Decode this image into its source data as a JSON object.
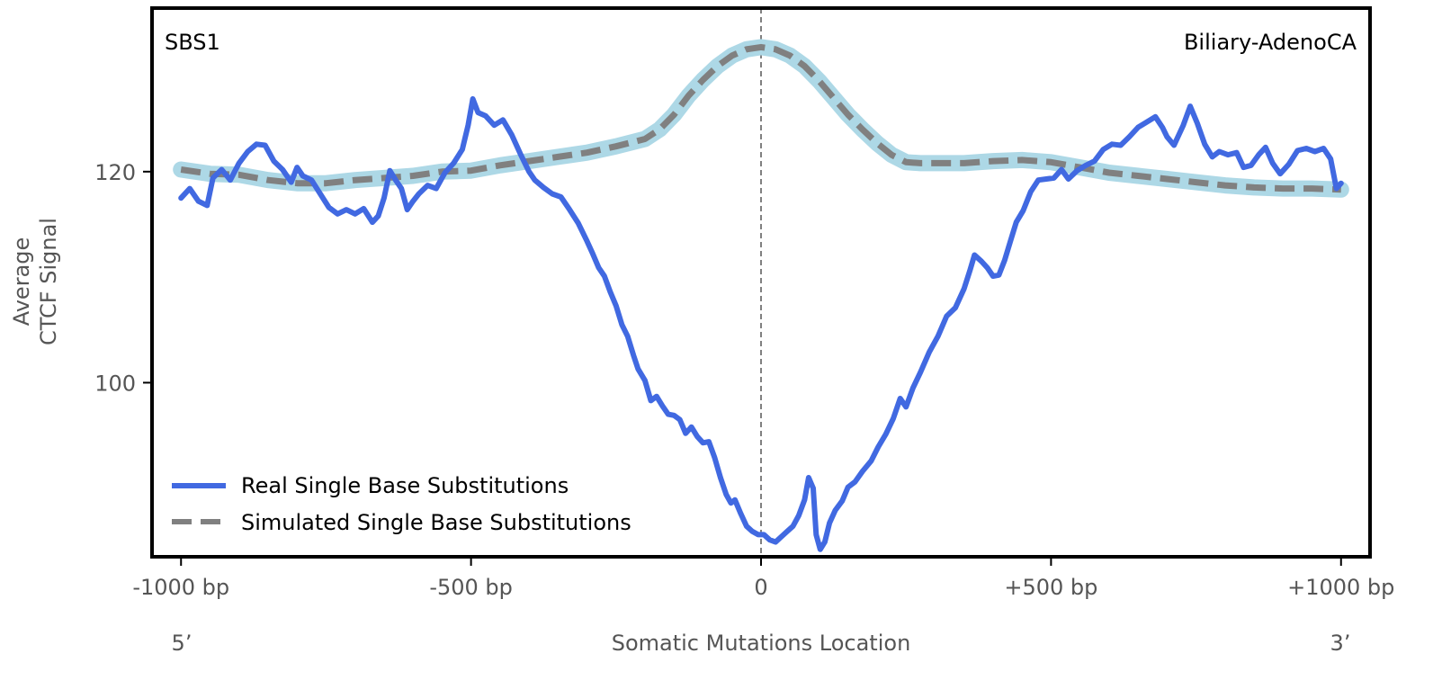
{
  "chart_data": {
    "type": "line",
    "panel_label": "SBS1",
    "cancer_type": "Biliary-AdenoCA",
    "xlabel": "Somatic Mutations Location",
    "ylabel_line1": "Average",
    "ylabel_line2": "CTCF Signal",
    "xlim": [
      -1050,
      1050
    ],
    "ylim": [
      83.5,
      135.5
    ],
    "x_ticks": [
      {
        "value": -1000,
        "label": "-1000 bp"
      },
      {
        "value": -500,
        "label": "-500 bp"
      },
      {
        "value": 0,
        "label": "0"
      },
      {
        "value": 500,
        "label": "+500 bp"
      },
      {
        "value": 1000,
        "label": "+1000 bp"
      }
    ],
    "y_ticks": [
      {
        "value": 100,
        "label": "100"
      },
      {
        "value": 120,
        "label": "120"
      }
    ],
    "strand_left": "5’",
    "strand_right": "3’",
    "center_line_x": 0,
    "legend": {
      "placement": "lower-left"
    },
    "colors": {
      "real": "#4169e1",
      "simulated": "#808080",
      "simulated_band": "#add8e6",
      "center_line": "#808080",
      "axis": "#000000",
      "tick_label": "#555555"
    },
    "series": [
      {
        "name": "Real Single Base Substitutions",
        "style": "solid",
        "points": [
          [
            -1000,
            117.5
          ],
          [
            -985,
            118.4
          ],
          [
            -970,
            117.2
          ],
          [
            -955,
            116.8
          ],
          [
            -945,
            119.4
          ],
          [
            -930,
            120.2
          ],
          [
            -915,
            119.2
          ],
          [
            -900,
            120.8
          ],
          [
            -885,
            121.9
          ],
          [
            -870,
            122.6
          ],
          [
            -855,
            122.5
          ],
          [
            -840,
            121.0
          ],
          [
            -825,
            120.2
          ],
          [
            -810,
            119.0
          ],
          [
            -800,
            120.4
          ],
          [
            -790,
            119.6
          ],
          [
            -775,
            119.2
          ],
          [
            -760,
            117.9
          ],
          [
            -745,
            116.6
          ],
          [
            -730,
            116.0
          ],
          [
            -715,
            116.4
          ],
          [
            -700,
            116.0
          ],
          [
            -685,
            116.5
          ],
          [
            -670,
            115.2
          ],
          [
            -660,
            115.8
          ],
          [
            -650,
            117.5
          ],
          [
            -640,
            120.1
          ],
          [
            -630,
            119.2
          ],
          [
            -620,
            118.4
          ],
          [
            -610,
            116.4
          ],
          [
            -600,
            117.2
          ],
          [
            -590,
            117.9
          ],
          [
            -575,
            118.7
          ],
          [
            -560,
            118.4
          ],
          [
            -545,
            119.9
          ],
          [
            -530,
            120.8
          ],
          [
            -515,
            122.1
          ],
          [
            -505,
            124.4
          ],
          [
            -497,
            126.9
          ],
          [
            -488,
            125.6
          ],
          [
            -475,
            125.3
          ],
          [
            -460,
            124.4
          ],
          [
            -445,
            124.9
          ],
          [
            -430,
            123.5
          ],
          [
            -415,
            121.7
          ],
          [
            -400,
            120.0
          ],
          [
            -390,
            119.2
          ],
          [
            -375,
            118.5
          ],
          [
            -360,
            117.9
          ],
          [
            -345,
            117.6
          ],
          [
            -330,
            116.4
          ],
          [
            -315,
            115.1
          ],
          [
            -300,
            113.4
          ],
          [
            -290,
            112.2
          ],
          [
            -280,
            110.9
          ],
          [
            -270,
            110.1
          ],
          [
            -260,
            108.6
          ],
          [
            -250,
            107.3
          ],
          [
            -240,
            105.5
          ],
          [
            -230,
            104.4
          ],
          [
            -220,
            102.6
          ],
          [
            -212,
            101.3
          ],
          [
            -200,
            100.2
          ],
          [
            -190,
            98.3
          ],
          [
            -180,
            98.7
          ],
          [
            -170,
            97.8
          ],
          [
            -160,
            97.0
          ],
          [
            -150,
            96.9
          ],
          [
            -140,
            96.5
          ],
          [
            -130,
            95.2
          ],
          [
            -120,
            95.8
          ],
          [
            -110,
            94.9
          ],
          [
            -100,
            94.3
          ],
          [
            -90,
            94.4
          ],
          [
            -80,
            92.9
          ],
          [
            -70,
            91.0
          ],
          [
            -60,
            89.4
          ],
          [
            -52,
            88.6
          ],
          [
            -45,
            88.9
          ],
          [
            -35,
            87.6
          ],
          [
            -25,
            86.4
          ],
          [
            -15,
            85.9
          ],
          [
            -5,
            85.6
          ],
          [
            5,
            85.6
          ],
          [
            15,
            85.1
          ],
          [
            25,
            84.9
          ],
          [
            35,
            85.4
          ],
          [
            45,
            85.9
          ],
          [
            55,
            86.4
          ],
          [
            65,
            87.4
          ],
          [
            75,
            88.9
          ],
          [
            82,
            91.0
          ],
          [
            90,
            90.0
          ],
          [
            95,
            85.6
          ],
          [
            102,
            84.2
          ],
          [
            110,
            84.9
          ],
          [
            118,
            86.7
          ],
          [
            128,
            87.9
          ],
          [
            140,
            88.8
          ],
          [
            150,
            90.1
          ],
          [
            162,
            90.6
          ],
          [
            175,
            91.6
          ],
          [
            190,
            92.6
          ],
          [
            202,
            93.9
          ],
          [
            215,
            95.1
          ],
          [
            228,
            96.6
          ],
          [
            240,
            98.5
          ],
          [
            250,
            97.7
          ],
          [
            262,
            99.5
          ],
          [
            275,
            101.0
          ],
          [
            290,
            102.9
          ],
          [
            305,
            104.4
          ],
          [
            320,
            106.3
          ],
          [
            335,
            107.1
          ],
          [
            350,
            108.9
          ],
          [
            360,
            110.6
          ],
          [
            368,
            112.1
          ],
          [
            380,
            111.5
          ],
          [
            390,
            110.9
          ],
          [
            400,
            110.1
          ],
          [
            410,
            110.2
          ],
          [
            420,
            111.6
          ],
          [
            430,
            113.4
          ],
          [
            440,
            115.2
          ],
          [
            452,
            116.3
          ],
          [
            465,
            118.1
          ],
          [
            478,
            119.2
          ],
          [
            492,
            119.3
          ],
          [
            505,
            119.4
          ],
          [
            518,
            120.2
          ],
          [
            530,
            119.3
          ],
          [
            545,
            120.1
          ],
          [
            560,
            120.6
          ],
          [
            575,
            121.0
          ],
          [
            590,
            122.1
          ],
          [
            605,
            122.6
          ],
          [
            620,
            122.5
          ],
          [
            635,
            123.3
          ],
          [
            650,
            124.2
          ],
          [
            665,
            124.7
          ],
          [
            680,
            125.2
          ],
          [
            692,
            124.2
          ],
          [
            700,
            123.3
          ],
          [
            712,
            122.5
          ],
          [
            728,
            124.4
          ],
          [
            740,
            126.2
          ],
          [
            752,
            124.6
          ],
          [
            765,
            122.6
          ],
          [
            778,
            121.4
          ],
          [
            790,
            121.9
          ],
          [
            805,
            121.6
          ],
          [
            820,
            121.8
          ],
          [
            832,
            120.4
          ],
          [
            845,
            120.6
          ],
          [
            858,
            121.6
          ],
          [
            870,
            122.3
          ],
          [
            882,
            120.8
          ],
          [
            895,
            119.8
          ],
          [
            910,
            120.7
          ],
          [
            925,
            122.0
          ],
          [
            940,
            122.2
          ],
          [
            955,
            121.9
          ],
          [
            970,
            122.2
          ],
          [
            982,
            121.2
          ],
          [
            992,
            118.4
          ],
          [
            1000,
            118.9
          ]
        ]
      },
      {
        "name": "Simulated Single Base Substitutions",
        "style": "dashed",
        "points": [
          [
            -1000,
            120.2
          ],
          [
            -950,
            119.8
          ],
          [
            -900,
            119.7
          ],
          [
            -850,
            119.2
          ],
          [
            -800,
            118.9
          ],
          [
            -750,
            118.9
          ],
          [
            -700,
            119.2
          ],
          [
            -650,
            119.4
          ],
          [
            -600,
            119.6
          ],
          [
            -550,
            120.0
          ],
          [
            -500,
            120.1
          ],
          [
            -450,
            120.6
          ],
          [
            -400,
            121.0
          ],
          [
            -350,
            121.4
          ],
          [
            -300,
            121.8
          ],
          [
            -250,
            122.4
          ],
          [
            -200,
            123.1
          ],
          [
            -175,
            124.0
          ],
          [
            -150,
            125.4
          ],
          [
            -125,
            127.2
          ],
          [
            -100,
            128.7
          ],
          [
            -75,
            130.0
          ],
          [
            -50,
            131.0
          ],
          [
            -25,
            131.6
          ],
          [
            0,
            131.8
          ],
          [
            25,
            131.6
          ],
          [
            50,
            131.0
          ],
          [
            75,
            130.0
          ],
          [
            100,
            128.6
          ],
          [
            125,
            127.0
          ],
          [
            150,
            125.4
          ],
          [
            175,
            124.0
          ],
          [
            200,
            122.7
          ],
          [
            225,
            121.6
          ],
          [
            250,
            120.9
          ],
          [
            275,
            120.8
          ],
          [
            300,
            120.8
          ],
          [
            350,
            120.8
          ],
          [
            400,
            121.0
          ],
          [
            450,
            121.1
          ],
          [
            500,
            120.9
          ],
          [
            550,
            120.4
          ],
          [
            600,
            119.9
          ],
          [
            650,
            119.6
          ],
          [
            700,
            119.3
          ],
          [
            750,
            119.0
          ],
          [
            800,
            118.7
          ],
          [
            850,
            118.5
          ],
          [
            900,
            118.4
          ],
          [
            950,
            118.4
          ],
          [
            1000,
            118.3
          ]
        ]
      }
    ]
  }
}
